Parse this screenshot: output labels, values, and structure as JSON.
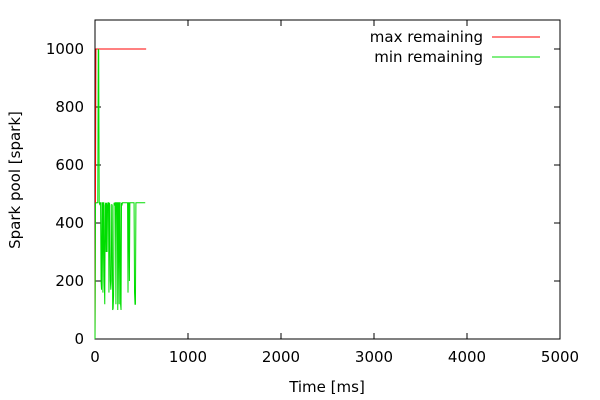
{
  "chart_data": {
    "type": "line",
    "xlabel": "Time [ms]",
    "ylabel": "Spark pool [spark]",
    "xlim": [
      0,
      5000
    ],
    "ylim": [
      0,
      1100
    ],
    "xticks": [
      0,
      1000,
      2000,
      3000,
      4000,
      5000
    ],
    "yticks": [
      0,
      200,
      400,
      600,
      800,
      1000
    ],
    "xtick_labels": [
      "0",
      "1000",
      "2000",
      "3000",
      "4000",
      "5000"
    ],
    "ytick_labels": [
      "0",
      "200",
      "400",
      "600",
      "800",
      "1000"
    ],
    "grid": false,
    "legend_position": "top-right",
    "series": [
      {
        "name": "max remaining",
        "color": "#ff0000",
        "x": [
          0,
          10,
          20,
          550
        ],
        "y": [
          0,
          1000,
          1000,
          1000
        ]
      },
      {
        "name": "min remaining",
        "color": "#00dd00",
        "x": [
          0,
          5,
          10,
          30,
          35,
          40,
          45,
          50,
          55,
          60,
          65,
          70,
          75,
          80,
          85,
          90,
          95,
          100,
          105,
          110,
          115,
          120,
          125,
          130,
          135,
          140,
          145,
          150,
          155,
          160,
          165,
          170,
          175,
          180,
          185,
          190,
          195,
          200,
          205,
          210,
          215,
          220,
          225,
          230,
          235,
          240,
          245,
          250,
          255,
          260,
          265,
          270,
          275,
          280,
          285,
          290,
          295,
          300,
          305,
          310,
          315,
          320,
          325,
          330,
          335,
          340,
          345,
          350,
          355,
          360,
          365,
          370,
          375,
          380,
          385,
          390,
          395,
          400,
          405,
          410,
          415,
          420,
          425,
          430,
          435,
          440,
          445,
          450,
          455,
          460,
          465,
          470,
          475,
          480,
          485,
          490,
          495,
          500,
          505,
          510,
          515,
          520,
          525,
          530,
          535,
          540
        ],
        "y": [
          0,
          465,
          470,
          470,
          1000,
          995,
          470,
          465,
          470,
          470,
          200,
          170,
          470,
          470,
          160,
          470,
          470,
          200,
          120,
          460,
          470,
          300,
          470,
          300,
          460,
          470,
          470,
          160,
          470,
          460,
          200,
          170,
          200,
          465,
          460,
          100,
          105,
          150,
          470,
          460,
          470,
          470,
          120,
          470,
          470,
          470,
          100,
          470,
          470,
          120,
          470,
          470,
          120,
          100,
          470,
          460,
          470,
          470,
          470,
          470,
          470,
          470,
          470,
          470,
          470,
          470,
          470,
          470,
          160,
          470,
          470,
          200,
          470,
          470,
          470,
          470,
          470,
          470,
          470,
          470,
          470,
          470,
          160,
          120,
          120,
          470,
          470,
          470,
          470,
          470,
          470,
          470,
          470,
          470,
          470,
          470,
          470,
          470,
          470,
          470,
          470,
          470,
          470,
          470,
          470,
          470
        ]
      }
    ]
  }
}
